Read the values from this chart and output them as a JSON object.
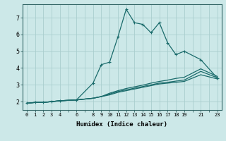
{
  "xlabel": "Humidex (Indice chaleur)",
  "ylabel": "",
  "bg_color": "#cce8e8",
  "line_color": "#1a6b6b",
  "grid_color": "#aacece",
  "xlim": [
    -0.5,
    23.5
  ],
  "ylim": [
    1.5,
    7.8
  ],
  "xtick_positions": [
    0,
    1,
    2,
    3,
    4,
    5,
    6,
    7,
    8,
    9,
    10,
    11,
    12,
    13,
    14,
    15,
    16,
    17,
    18,
    19,
    20,
    21,
    22,
    23
  ],
  "xtick_labels": [
    "0",
    "1",
    "2",
    "3",
    "4",
    "",
    "6",
    "",
    "8",
    "9",
    "10",
    "11",
    "12",
    "13",
    "14",
    "15",
    "16",
    "17",
    "18",
    "19",
    "",
    "21",
    "",
    "23"
  ],
  "yticks": [
    2,
    3,
    4,
    5,
    6,
    7
  ],
  "line1_x": [
    0,
    1,
    2,
    3,
    4,
    6,
    8,
    9,
    10,
    11,
    12,
    13,
    14,
    15,
    16,
    17,
    18,
    19,
    21,
    23
  ],
  "line1_y": [
    1.9,
    1.95,
    1.95,
    2.0,
    2.05,
    2.1,
    3.1,
    4.2,
    4.35,
    5.85,
    7.5,
    6.7,
    6.6,
    6.1,
    6.7,
    5.5,
    4.8,
    5.0,
    4.5,
    3.4
  ],
  "line2_x": [
    0,
    1,
    2,
    3,
    4,
    6,
    8,
    9,
    10,
    11,
    12,
    13,
    14,
    15,
    16,
    17,
    18,
    19,
    21,
    23
  ],
  "line2_y": [
    1.9,
    1.95,
    1.95,
    2.0,
    2.05,
    2.1,
    2.2,
    2.3,
    2.4,
    2.55,
    2.65,
    2.75,
    2.85,
    2.95,
    3.05,
    3.1,
    3.15,
    3.2,
    3.6,
    3.35
  ],
  "line3_x": [
    0,
    1,
    2,
    3,
    4,
    6,
    8,
    9,
    10,
    11,
    12,
    13,
    14,
    15,
    16,
    17,
    18,
    19,
    21,
    23
  ],
  "line3_y": [
    1.9,
    1.95,
    1.95,
    2.0,
    2.05,
    2.1,
    2.2,
    2.3,
    2.45,
    2.6,
    2.7,
    2.8,
    2.9,
    3.0,
    3.1,
    3.15,
    3.22,
    3.28,
    3.8,
    3.42
  ],
  "line4_x": [
    0,
    1,
    2,
    3,
    4,
    6,
    8,
    9,
    10,
    11,
    12,
    13,
    14,
    15,
    16,
    17,
    18,
    19,
    21,
    23
  ],
  "line4_y": [
    1.9,
    1.95,
    1.95,
    2.0,
    2.05,
    2.1,
    2.2,
    2.3,
    2.5,
    2.65,
    2.78,
    2.88,
    2.98,
    3.1,
    3.2,
    3.28,
    3.38,
    3.45,
    3.95,
    3.5
  ]
}
